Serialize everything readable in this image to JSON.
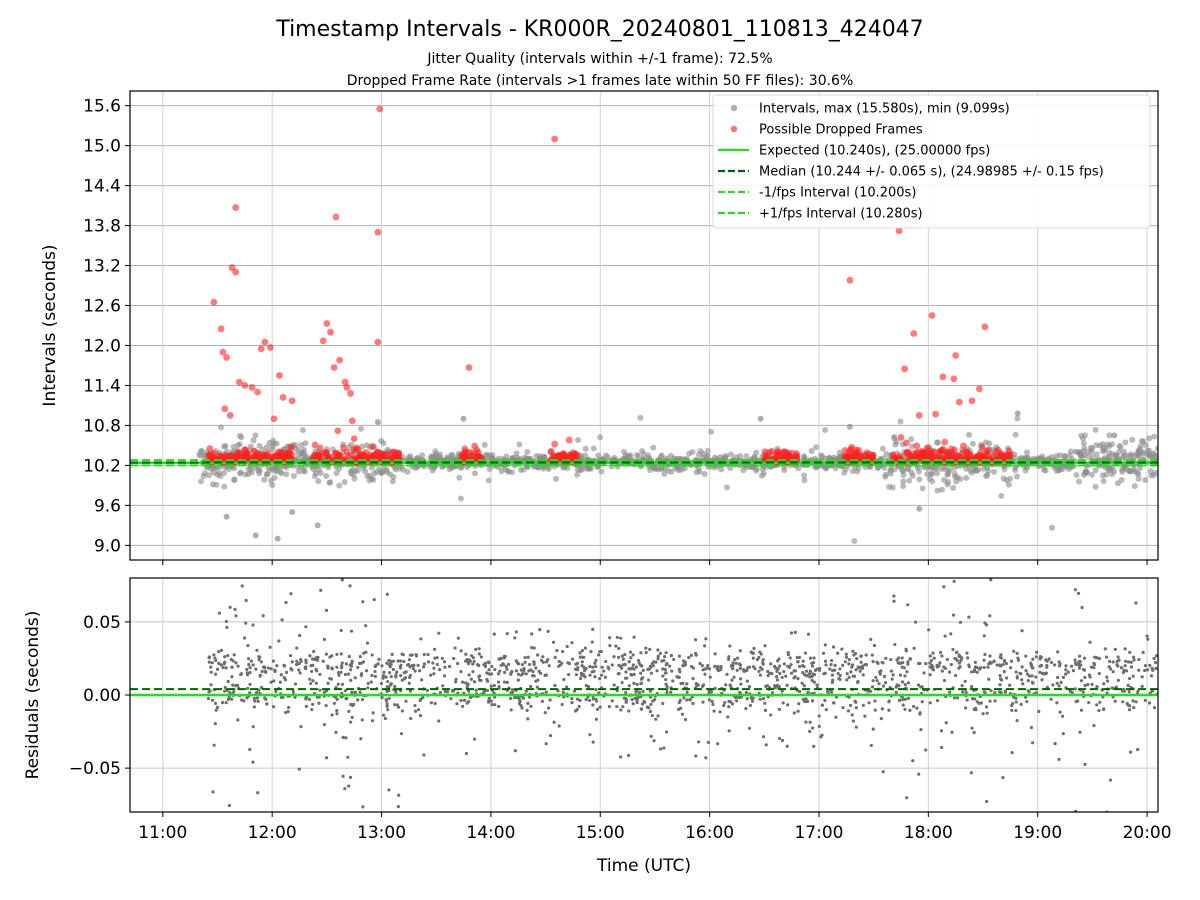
{
  "title": "Timestamp Intervals - KR000R_20240801_110813_424047",
  "subtitle1": "Jitter Quality (intervals within +/-1 frame): 72.5%",
  "subtitle2": "Dropped Frame Rate (intervals >1 frames late within 50 FF files): 30.6%",
  "chart_data": [
    {
      "type": "scatter",
      "panel": "intervals",
      "ylabel": "Intervals (seconds)",
      "xlim": [
        "10:42",
        "20:06"
      ],
      "ylim": [
        8.78,
        15.82
      ],
      "y_ticks": [
        "9.0",
        "9.6",
        "10.2",
        "10.8",
        "11.4",
        "12.0",
        "12.6",
        "13.2",
        "13.8",
        "14.4",
        "15.0",
        "15.6"
      ],
      "grid": true,
      "legend_position": "top-right",
      "legend": [
        {
          "label": "Intervals, max (15.580s), min (9.099s)",
          "kind": "marker",
          "color": "#8c8c8c"
        },
        {
          "label": "Possible Dropped Frames",
          "kind": "marker",
          "color": "#ff3333"
        },
        {
          "label": "Expected (10.240s), (25.00000 fps)",
          "kind": "solid",
          "color": "#22dd22"
        },
        {
          "label": "Median (10.244 +/- 0.065 s), (24.98985 +/- 0.15 fps)",
          "kind": "dashed",
          "color": "#006400"
        },
        {
          "label": "-1/fps Interval (10.200s)",
          "kind": "dashed",
          "color": "#22dd22"
        },
        {
          "label": "+1/fps Interval (10.280s)",
          "kind": "dashed",
          "color": "#22dd22"
        }
      ],
      "reference_lines": {
        "expected": 10.24,
        "median": 10.244,
        "minus_one_fps": 10.2,
        "plus_one_fps": 10.28
      },
      "dropped_frames": [
        {
          "t": "11:28",
          "y": 12.65
        },
        {
          "t": "11:32",
          "y": 12.25
        },
        {
          "t": "11:33",
          "y": 11.9
        },
        {
          "t": "11:35",
          "y": 11.82
        },
        {
          "t": "11:38",
          "y": 13.17
        },
        {
          "t": "11:40",
          "y": 13.1
        },
        {
          "t": "11:40",
          "y": 14.07
        },
        {
          "t": "11:42",
          "y": 11.45
        },
        {
          "t": "11:45",
          "y": 11.4
        },
        {
          "t": "11:49",
          "y": 11.37
        },
        {
          "t": "11:52",
          "y": 11.3
        },
        {
          "t": "11:54",
          "y": 11.95
        },
        {
          "t": "11:56",
          "y": 12.05
        },
        {
          "t": "11:59",
          "y": 11.97
        },
        {
          "t": "12:01",
          "y": 10.9
        },
        {
          "t": "12:04",
          "y": 11.55
        },
        {
          "t": "12:06",
          "y": 11.22
        },
        {
          "t": "12:11",
          "y": 11.17
        },
        {
          "t": "12:28",
          "y": 12.07
        },
        {
          "t": "12:30",
          "y": 12.33
        },
        {
          "t": "12:32",
          "y": 12.2
        },
        {
          "t": "12:34",
          "y": 11.67
        },
        {
          "t": "12:35",
          "y": 13.93
        },
        {
          "t": "12:37",
          "y": 11.78
        },
        {
          "t": "12:40",
          "y": 11.45
        },
        {
          "t": "12:41",
          "y": 11.37
        },
        {
          "t": "12:43",
          "y": 11.28
        },
        {
          "t": "12:44",
          "y": 10.87
        },
        {
          "t": "12:58",
          "y": 12.05
        },
        {
          "t": "12:58",
          "y": 13.7
        },
        {
          "t": "12:59",
          "y": 15.55
        },
        {
          "t": "13:48",
          "y": 11.67
        },
        {
          "t": "14:35",
          "y": 15.1
        },
        {
          "t": "14:35",
          "y": 10.52
        },
        {
          "t": "14:43",
          "y": 10.58
        },
        {
          "t": "17:17",
          "y": 12.98
        },
        {
          "t": "17:44",
          "y": 13.72
        },
        {
          "t": "17:47",
          "y": 11.65
        },
        {
          "t": "17:52",
          "y": 12.18
        },
        {
          "t": "17:55",
          "y": 10.95
        },
        {
          "t": "18:02",
          "y": 12.45
        },
        {
          "t": "18:04",
          "y": 10.97
        },
        {
          "t": "18:08",
          "y": 11.53
        },
        {
          "t": "18:14",
          "y": 11.5
        },
        {
          "t": "18:15",
          "y": 11.85
        },
        {
          "t": "18:17",
          "y": 11.15
        },
        {
          "t": "18:24",
          "y": 11.17
        },
        {
          "t": "18:28",
          "y": 11.35
        },
        {
          "t": "18:31",
          "y": 12.28
        },
        {
          "t": "17:45",
          "y": 10.62
        },
        {
          "t": "18:09",
          "y": 10.55
        },
        {
          "t": "17:18",
          "y": 10.47
        },
        {
          "t": "11:34",
          "y": 11.05
        },
        {
          "t": "11:37",
          "y": 10.95
        },
        {
          "t": "12:36",
          "y": 10.72
        },
        {
          "t": "12:45",
          "y": 10.6
        }
      ],
      "dropped_frame_baseline_band": [
        10.24,
        10.5
      ],
      "dropped_frame_clusters": [
        {
          "start": "11:25",
          "end": "12:12"
        },
        {
          "start": "12:22",
          "end": "13:10"
        },
        {
          "start": "13:44",
          "end": "13:55"
        },
        {
          "start": "14:32",
          "end": "14:48"
        },
        {
          "start": "16:30",
          "end": "16:48"
        },
        {
          "start": "17:14",
          "end": "17:30"
        },
        {
          "start": "17:40",
          "end": "18:45"
        }
      ],
      "intervals_extremes": {
        "max": 15.58,
        "min": 9.099
      },
      "notable_intervals": [
        {
          "t": "11:51",
          "y": 9.15
        },
        {
          "t": "12:03",
          "y": 9.1
        },
        {
          "t": "11:35",
          "y": 9.43
        },
        {
          "t": "12:11",
          "y": 9.5
        },
        {
          "t": "12:25",
          "y": 9.3
        },
        {
          "t": "17:55",
          "y": 9.55
        },
        {
          "t": "16:28",
          "y": 10.9
        },
        {
          "t": "18:49",
          "y": 10.98
        },
        {
          "t": "13:45",
          "y": 10.9
        },
        {
          "t": "12:58",
          "y": 10.85
        },
        {
          "t": "17:17",
          "y": 10.78
        },
        {
          "t": "19:42",
          "y": 10.65
        }
      ]
    },
    {
      "type": "scatter",
      "panel": "residuals",
      "xlabel": "Time (UTC)",
      "ylabel": "Residuals (seconds)",
      "xlim": [
        "10:42",
        "20:06"
      ],
      "ylim": [
        -0.08,
        0.08
      ],
      "y_ticks": [
        "−0.05",
        "0.00",
        "0.05"
      ],
      "x_ticks": [
        "11:00",
        "12:00",
        "13:00",
        "14:00",
        "15:00",
        "16:00",
        "17:00",
        "18:00",
        "19:00",
        "20:00"
      ],
      "grid": true,
      "reference_lines": {
        "expected": 0.0,
        "median": 0.004
      },
      "point_color": "#6e6e6e",
      "bands": [
        {
          "start": "11:25",
          "end": "20:06",
          "center": 0.02,
          "spread": 0.006
        },
        {
          "start": "11:25",
          "end": "20:06",
          "center": 0.0,
          "spread": 0.006
        }
      ]
    }
  ]
}
